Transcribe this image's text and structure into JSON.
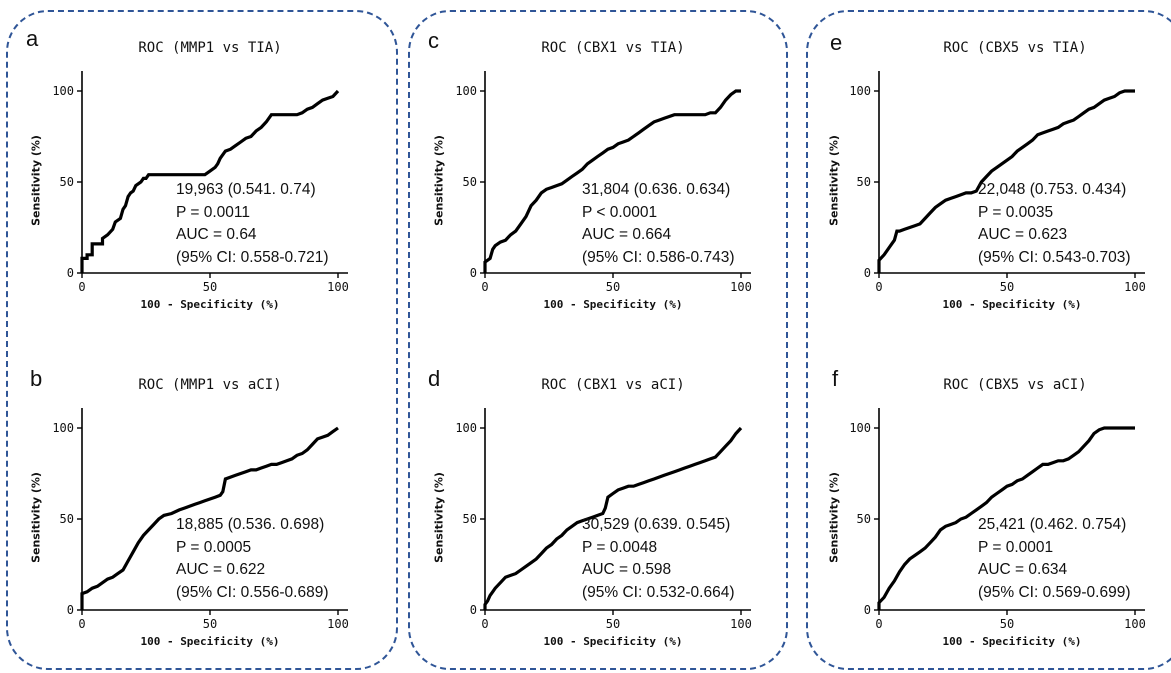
{
  "colors": {
    "frame": "#2f5597",
    "curve": "#000000",
    "text": "#111111"
  },
  "chart_data": [
    {
      "panel": "a",
      "type": "line",
      "title": "ROC (MMP1 vs TIA)",
      "xlabel": "100 - Specificity (%)",
      "ylabel": "Sensitivity (%)",
      "xlim": [
        0,
        100
      ],
      "ylim": [
        0,
        100
      ],
      "xticks": [
        0,
        50,
        100
      ],
      "yticks": [
        0,
        50,
        100
      ],
      "grid": false,
      "annotation": [
        "19,963 (0.541. 0.74)",
        "P = 0.0011",
        "AUC = 0.64",
        "(95% CI: 0.558-0.721)"
      ],
      "x": [
        0,
        0,
        2,
        2,
        4,
        4,
        8,
        8,
        10,
        12,
        13,
        15,
        16,
        17,
        18,
        19,
        20,
        21,
        22,
        23,
        24,
        25,
        26,
        27,
        28,
        48,
        50,
        52,
        53,
        54,
        55,
        56,
        58,
        60,
        62,
        64,
        66,
        68,
        70,
        72,
        74,
        76,
        78,
        80,
        82,
        84,
        86,
        88,
        90,
        92,
        94,
        96,
        98,
        100
      ],
      "y": [
        0,
        8,
        8,
        10,
        10,
        16,
        16,
        19,
        21,
        24,
        28,
        30,
        35,
        37,
        42,
        44,
        45,
        48,
        49,
        50,
        52,
        52,
        54,
        54,
        54,
        54,
        56,
        58,
        60,
        63,
        65,
        67,
        68,
        70,
        72,
        74,
        75,
        78,
        80,
        83,
        87,
        87,
        87,
        87,
        87,
        87,
        88,
        90,
        91,
        93,
        95,
        96,
        97,
        100
      ]
    },
    {
      "panel": "b",
      "type": "line",
      "title": "ROC (MMP1 vs aCI)",
      "xlabel": "100 - Specificity (%)",
      "ylabel": "Sensitivity (%)",
      "xlim": [
        0,
        100
      ],
      "ylim": [
        0,
        100
      ],
      "xticks": [
        0,
        50,
        100
      ],
      "yticks": [
        0,
        50,
        100
      ],
      "grid": false,
      "annotation": [
        "18,885 (0.536. 0.698)",
        "P = 0.0005",
        "AUC = 0.622",
        "(95% CI: 0.556-0.689)"
      ],
      "x": [
        0,
        0,
        2,
        4,
        6,
        8,
        10,
        12,
        14,
        16,
        18,
        20,
        22,
        24,
        26,
        28,
        30,
        32,
        35,
        38,
        40,
        42,
        44,
        46,
        48,
        50,
        52,
        54,
        55,
        56,
        58,
        60,
        62,
        64,
        66,
        68,
        70,
        72,
        74,
        76,
        78,
        80,
        82,
        84,
        86,
        88,
        90,
        92,
        94,
        96,
        98,
        100
      ],
      "y": [
        0,
        9,
        10,
        12,
        13,
        15,
        17,
        18,
        20,
        22,
        27,
        32,
        37,
        41,
        44,
        47,
        50,
        52,
        53,
        55,
        56,
        57,
        58,
        59,
        60,
        61,
        62,
        63,
        65,
        72,
        73,
        74,
        75,
        76,
        77,
        77,
        78,
        79,
        80,
        80,
        81,
        82,
        83,
        85,
        86,
        88,
        91,
        94,
        95,
        96,
        98,
        100
      ]
    },
    {
      "panel": "c",
      "type": "line",
      "title": "ROC (CBX1 vs TIA)",
      "xlabel": "100 - Specificity (%)",
      "ylabel": "Sensitivity (%)",
      "xlim": [
        0,
        100
      ],
      "ylim": [
        0,
        100
      ],
      "xticks": [
        0,
        50,
        100
      ],
      "yticks": [
        0,
        50,
        100
      ],
      "grid": false,
      "annotation": [
        "31,804 (0.636. 0.634)",
        "P < 0.0001",
        "AUC = 0.664",
        "(95% CI: 0.586-0.743)"
      ],
      "x": [
        0,
        0,
        2,
        3,
        4,
        6,
        8,
        10,
        12,
        14,
        16,
        18,
        20,
        22,
        24,
        26,
        28,
        30,
        32,
        34,
        36,
        38,
        40,
        42,
        44,
        46,
        48,
        50,
        52,
        54,
        56,
        58,
        60,
        62,
        64,
        66,
        68,
        70,
        72,
        74,
        76,
        78,
        80,
        82,
        84,
        86,
        88,
        90,
        92,
        94,
        96,
        98,
        100
      ],
      "y": [
        0,
        6,
        8,
        13,
        15,
        17,
        18,
        21,
        23,
        27,
        31,
        37,
        40,
        44,
        46,
        47,
        48,
        49,
        51,
        53,
        55,
        57,
        60,
        62,
        64,
        66,
        68,
        69,
        71,
        72,
        73,
        75,
        77,
        79,
        81,
        83,
        84,
        85,
        86,
        87,
        87,
        87,
        87,
        87,
        87,
        87,
        88,
        88,
        91,
        95,
        98,
        100,
        100
      ]
    },
    {
      "panel": "d",
      "type": "line",
      "title": "ROC (CBX1 vs aCI)",
      "xlabel": "100 - Specificity (%)",
      "ylabel": "Sensitivity (%)",
      "xlim": [
        0,
        100
      ],
      "ylim": [
        0,
        100
      ],
      "xticks": [
        0,
        50,
        100
      ],
      "yticks": [
        0,
        50,
        100
      ],
      "grid": false,
      "annotation": [
        "30,529 (0.639. 0.545)",
        "P = 0.0048",
        "AUC = 0.598",
        "(95% CI: 0.532-0.664)"
      ],
      "x": [
        0,
        0,
        1,
        2,
        3,
        4,
        6,
        8,
        10,
        12,
        14,
        16,
        18,
        20,
        22,
        24,
        26,
        28,
        30,
        32,
        34,
        36,
        38,
        40,
        42,
        44,
        46,
        47,
        48,
        50,
        52,
        54,
        56,
        58,
        60,
        62,
        64,
        66,
        68,
        70,
        72,
        74,
        76,
        78,
        80,
        82,
        84,
        86,
        88,
        90,
        92,
        94,
        96,
        98,
        100
      ],
      "y": [
        0,
        3,
        5,
        8,
        10,
        12,
        15,
        18,
        19,
        20,
        22,
        24,
        26,
        28,
        31,
        34,
        36,
        39,
        41,
        44,
        46,
        48,
        49,
        50,
        51,
        52,
        53,
        56,
        62,
        64,
        66,
        67,
        68,
        68,
        69,
        70,
        71,
        72,
        73,
        74,
        75,
        76,
        77,
        78,
        79,
        80,
        81,
        82,
        83,
        84,
        87,
        90,
        93,
        97,
        100
      ]
    },
    {
      "panel": "e",
      "type": "line",
      "title": "ROC (CBX5 vs TIA)",
      "xlabel": "100 - Specificity (%)",
      "ylabel": "Sensitivity (%)",
      "xlim": [
        0,
        100
      ],
      "ylim": [
        0,
        100
      ],
      "xticks": [
        0,
        50,
        100
      ],
      "yticks": [
        0,
        50,
        100
      ],
      "grid": false,
      "annotation": [
        "22,048 (0.753. 0.434)",
        "P = 0.0035",
        "AUC = 0.623",
        "(95% CI: 0.543-0.703)"
      ],
      "x": [
        0,
        0,
        2,
        4,
        6,
        7,
        8,
        10,
        12,
        14,
        16,
        18,
        20,
        22,
        24,
        26,
        28,
        30,
        32,
        34,
        36,
        38,
        40,
        42,
        44,
        46,
        48,
        50,
        52,
        54,
        56,
        58,
        60,
        62,
        64,
        66,
        68,
        70,
        72,
        74,
        76,
        78,
        80,
        82,
        84,
        86,
        88,
        90,
        92,
        94,
        96,
        98,
        100
      ],
      "y": [
        0,
        7,
        10,
        14,
        18,
        23,
        23,
        24,
        25,
        26,
        27,
        30,
        33,
        36,
        38,
        40,
        41,
        42,
        43,
        44,
        44,
        45,
        50,
        53,
        56,
        58,
        60,
        62,
        64,
        67,
        69,
        71,
        73,
        76,
        77,
        78,
        79,
        80,
        82,
        83,
        84,
        86,
        88,
        90,
        91,
        93,
        95,
        96,
        97,
        99,
        100,
        100,
        100
      ]
    },
    {
      "panel": "f",
      "type": "line",
      "title": "ROC (CBX5 vs aCI)",
      "xlabel": "100 - Specificity (%)",
      "ylabel": "Sensitivity (%)",
      "xlim": [
        0,
        100
      ],
      "ylim": [
        0,
        100
      ],
      "xticks": [
        0,
        50,
        100
      ],
      "yticks": [
        0,
        50,
        100
      ],
      "grid": false,
      "annotation": [
        "25,421 (0.462. 0.754)",
        "P = 0.0001",
        "AUC = 0.634",
        "(95% CI: 0.569-0.699)"
      ],
      "x": [
        0,
        0,
        2,
        4,
        6,
        8,
        10,
        12,
        14,
        16,
        18,
        20,
        22,
        24,
        26,
        28,
        30,
        32,
        34,
        36,
        38,
        40,
        42,
        44,
        46,
        48,
        50,
        52,
        54,
        56,
        58,
        60,
        62,
        64,
        66,
        68,
        70,
        72,
        74,
        76,
        78,
        80,
        82,
        84,
        86,
        88,
        90,
        92,
        94,
        96,
        98,
        100
      ],
      "y": [
        0,
        4,
        7,
        12,
        16,
        21,
        25,
        28,
        30,
        32,
        34,
        37,
        40,
        44,
        46,
        47,
        48,
        50,
        51,
        53,
        55,
        57,
        59,
        62,
        64,
        66,
        68,
        69,
        71,
        72,
        74,
        76,
        78,
        80,
        80,
        81,
        82,
        82,
        83,
        85,
        87,
        90,
        93,
        97,
        99,
        100,
        100,
        100,
        100,
        100,
        100,
        100
      ]
    }
  ]
}
